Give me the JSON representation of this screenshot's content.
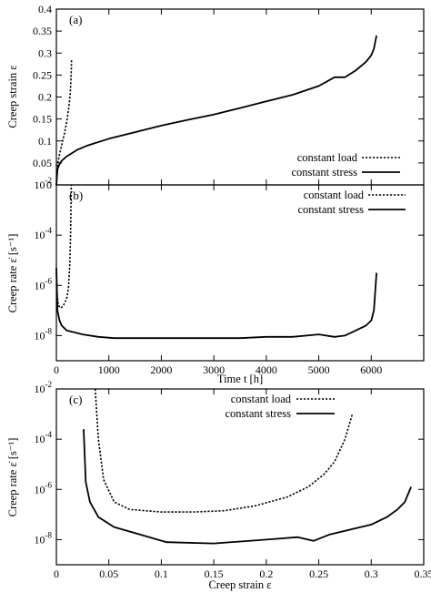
{
  "chart_data": [
    {
      "panel": "(a)",
      "type": "line",
      "xlim": [
        0,
        7000
      ],
      "ylim": [
        0,
        0.4
      ],
      "ylabel": "Creep strain ε",
      "xticks": [
        0,
        1000,
        2000,
        3000,
        4000,
        5000,
        6000
      ],
      "xtick_labels": [],
      "yticks": [
        0,
        0.05,
        0.1,
        0.15,
        0.2,
        0.25,
        0.3,
        0.35,
        0.4
      ],
      "ytick_labels": [
        "0",
        "0.05",
        "0.1",
        "0.15",
        "0.2",
        "0.25",
        "0.3",
        "0.35",
        "0.4"
      ],
      "legend": "bottom-right",
      "series": [
        {
          "name": "constant load",
          "style": "dashed",
          "x": [
            0,
            10,
            30,
            60,
            100,
            150,
            200,
            240,
            265,
            280,
            290
          ],
          "y": [
            0.0,
            0.025,
            0.05,
            0.07,
            0.09,
            0.115,
            0.145,
            0.18,
            0.21,
            0.245,
            0.285
          ]
        },
        {
          "name": "constant stress",
          "style": "solid",
          "x": [
            0,
            20,
            50,
            100,
            200,
            400,
            600,
            1000,
            1500,
            2000,
            2500,
            3000,
            3500,
            4000,
            4500,
            5000,
            5300,
            5500,
            5700,
            5900,
            6000,
            6050,
            6100
          ],
          "y": [
            0.0,
            0.035,
            0.045,
            0.055,
            0.065,
            0.08,
            0.09,
            0.105,
            0.12,
            0.135,
            0.148,
            0.16,
            0.175,
            0.19,
            0.205,
            0.225,
            0.245,
            0.245,
            0.26,
            0.28,
            0.295,
            0.31,
            0.34
          ]
        }
      ]
    },
    {
      "panel": "(b)",
      "type": "line",
      "xlim": [
        0,
        7000
      ],
      "ylim_log10": [
        -9,
        -2
      ],
      "xlabel": "Time t [h]",
      "ylabel": "Creep rate ε̇ [s⁻¹]",
      "xticks": [
        0,
        1000,
        2000,
        3000,
        4000,
        5000,
        6000
      ],
      "xtick_labels": [
        "0",
        "1000",
        "2000",
        "3000",
        "4000",
        "5000",
        "6000"
      ],
      "yticks_log10": [
        -8,
        -6,
        -4,
        -2
      ],
      "ytick_labels": [
        "10",
        "10",
        "10",
        "10"
      ],
      "ytick_exponents": [
        "-8",
        "-6",
        "-4",
        "-2"
      ],
      "legend": "top-right",
      "series": [
        {
          "name": "constant load",
          "style": "dashed",
          "x": [
            0,
            15,
            40,
            80,
            120,
            160,
            200,
            230,
            255,
            270,
            285
          ],
          "y_log10": [
            -5.5,
            -6.4,
            -6.8,
            -6.9,
            -6.85,
            -6.7,
            -6.5,
            -6.1,
            -5.2,
            -4.0,
            -2.0
          ]
        },
        {
          "name": "constant stress",
          "style": "solid",
          "x": [
            0,
            20,
            60,
            100,
            150,
            200,
            300,
            500,
            800,
            1100,
            1500,
            2000,
            2500,
            3000,
            3500,
            4000,
            4500,
            5000,
            5300,
            5500,
            5700,
            5900,
            6000,
            6050,
            6100
          ],
          "y_log10": [
            -5.3,
            -7.0,
            -7.4,
            -7.6,
            -7.7,
            -7.8,
            -7.85,
            -7.95,
            -8.05,
            -8.1,
            -8.1,
            -8.1,
            -8.1,
            -8.1,
            -8.1,
            -8.05,
            -8.05,
            -7.95,
            -8.05,
            -8.0,
            -7.8,
            -7.6,
            -7.4,
            -7.0,
            -5.5
          ]
        }
      ]
    },
    {
      "panel": "(c)",
      "type": "line",
      "xlim": [
        0,
        0.35
      ],
      "ylim_log10": [
        -9,
        -2
      ],
      "xlabel": "Creep strain ε",
      "ylabel": "Creep rate ε̇ [s⁻¹]",
      "xticks": [
        0,
        0.05,
        0.1,
        0.15,
        0.2,
        0.25,
        0.3,
        0.35
      ],
      "xtick_labels": [
        "0",
        "0.05",
        "0.1",
        "0.15",
        "0.2",
        "0.25",
        "0.3",
        "0.35"
      ],
      "yticks_log10": [
        -8,
        -6,
        -4,
        -2
      ],
      "ytick_labels": [
        "10",
        "10",
        "10",
        "10"
      ],
      "ytick_exponents": [
        "-8",
        "-6",
        "-4",
        "-2"
      ],
      "legend": "top-center",
      "series": [
        {
          "name": "constant load",
          "style": "dashed",
          "x": [
            0.037,
            0.04,
            0.045,
            0.055,
            0.07,
            0.1,
            0.13,
            0.16,
            0.19,
            0.22,
            0.24,
            0.255,
            0.265,
            0.275,
            0.282
          ],
          "y_log10": [
            -2.0,
            -4.0,
            -5.6,
            -6.5,
            -6.8,
            -6.9,
            -6.9,
            -6.85,
            -6.65,
            -6.3,
            -5.9,
            -5.4,
            -4.9,
            -4.0,
            -3.0
          ]
        },
        {
          "name": "constant stress",
          "style": "solid",
          "x": [
            0.026,
            0.028,
            0.032,
            0.04,
            0.055,
            0.08,
            0.105,
            0.15,
            0.2,
            0.23,
            0.245,
            0.26,
            0.28,
            0.3,
            0.315,
            0.325,
            0.332,
            0.338
          ],
          "y_log10": [
            -3.6,
            -5.7,
            -6.5,
            -7.1,
            -7.5,
            -7.8,
            -8.1,
            -8.15,
            -8.0,
            -7.9,
            -8.05,
            -7.8,
            -7.6,
            -7.4,
            -7.1,
            -6.8,
            -6.5,
            -5.9
          ]
        }
      ]
    }
  ]
}
